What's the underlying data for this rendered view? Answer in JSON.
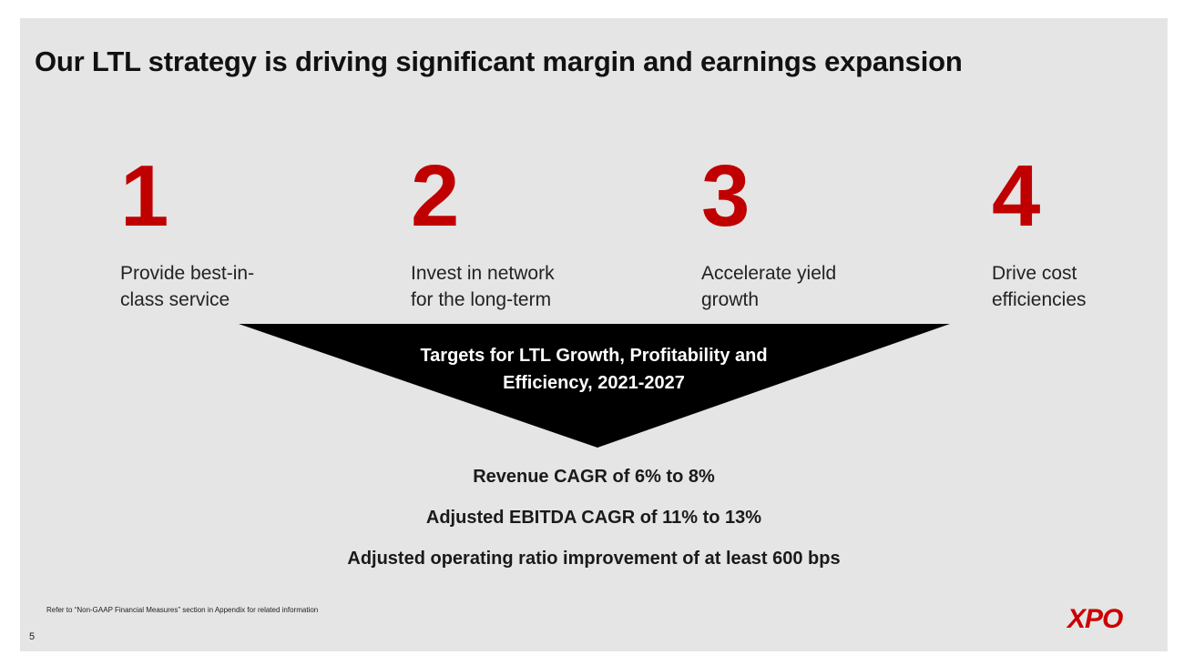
{
  "title": "Our LTL strategy is driving significant margin and earnings expansion",
  "pillars": [
    {
      "number": "1",
      "line1": "Provide best-in-",
      "line2": "class service"
    },
    {
      "number": "2",
      "line1": "Invest in network",
      "line2": "for the long-term"
    },
    {
      "number": "3",
      "line1": "Accelerate yield",
      "line2": "growth"
    },
    {
      "number": "4",
      "line1": "Drive cost",
      "line2": "efficiencies"
    }
  ],
  "targets_header": {
    "line1": "Targets for LTL Growth, Profitability and",
    "line2": "Efficiency, 2021-2027"
  },
  "targets": [
    "Revenue CAGR of 6% to 8%",
    "Adjusted EBITDA CAGR of 11% to 13%",
    "Adjusted operating ratio improvement of at least 600 bps"
  ],
  "footnote": "Refer to “Non-GAAP Financial Measures” section in Appendix for related information",
  "page_number": "5",
  "logo": "XPO",
  "colors": {
    "accent": "#c00000",
    "background": "#e5e5e5",
    "triangle": "#000000"
  }
}
